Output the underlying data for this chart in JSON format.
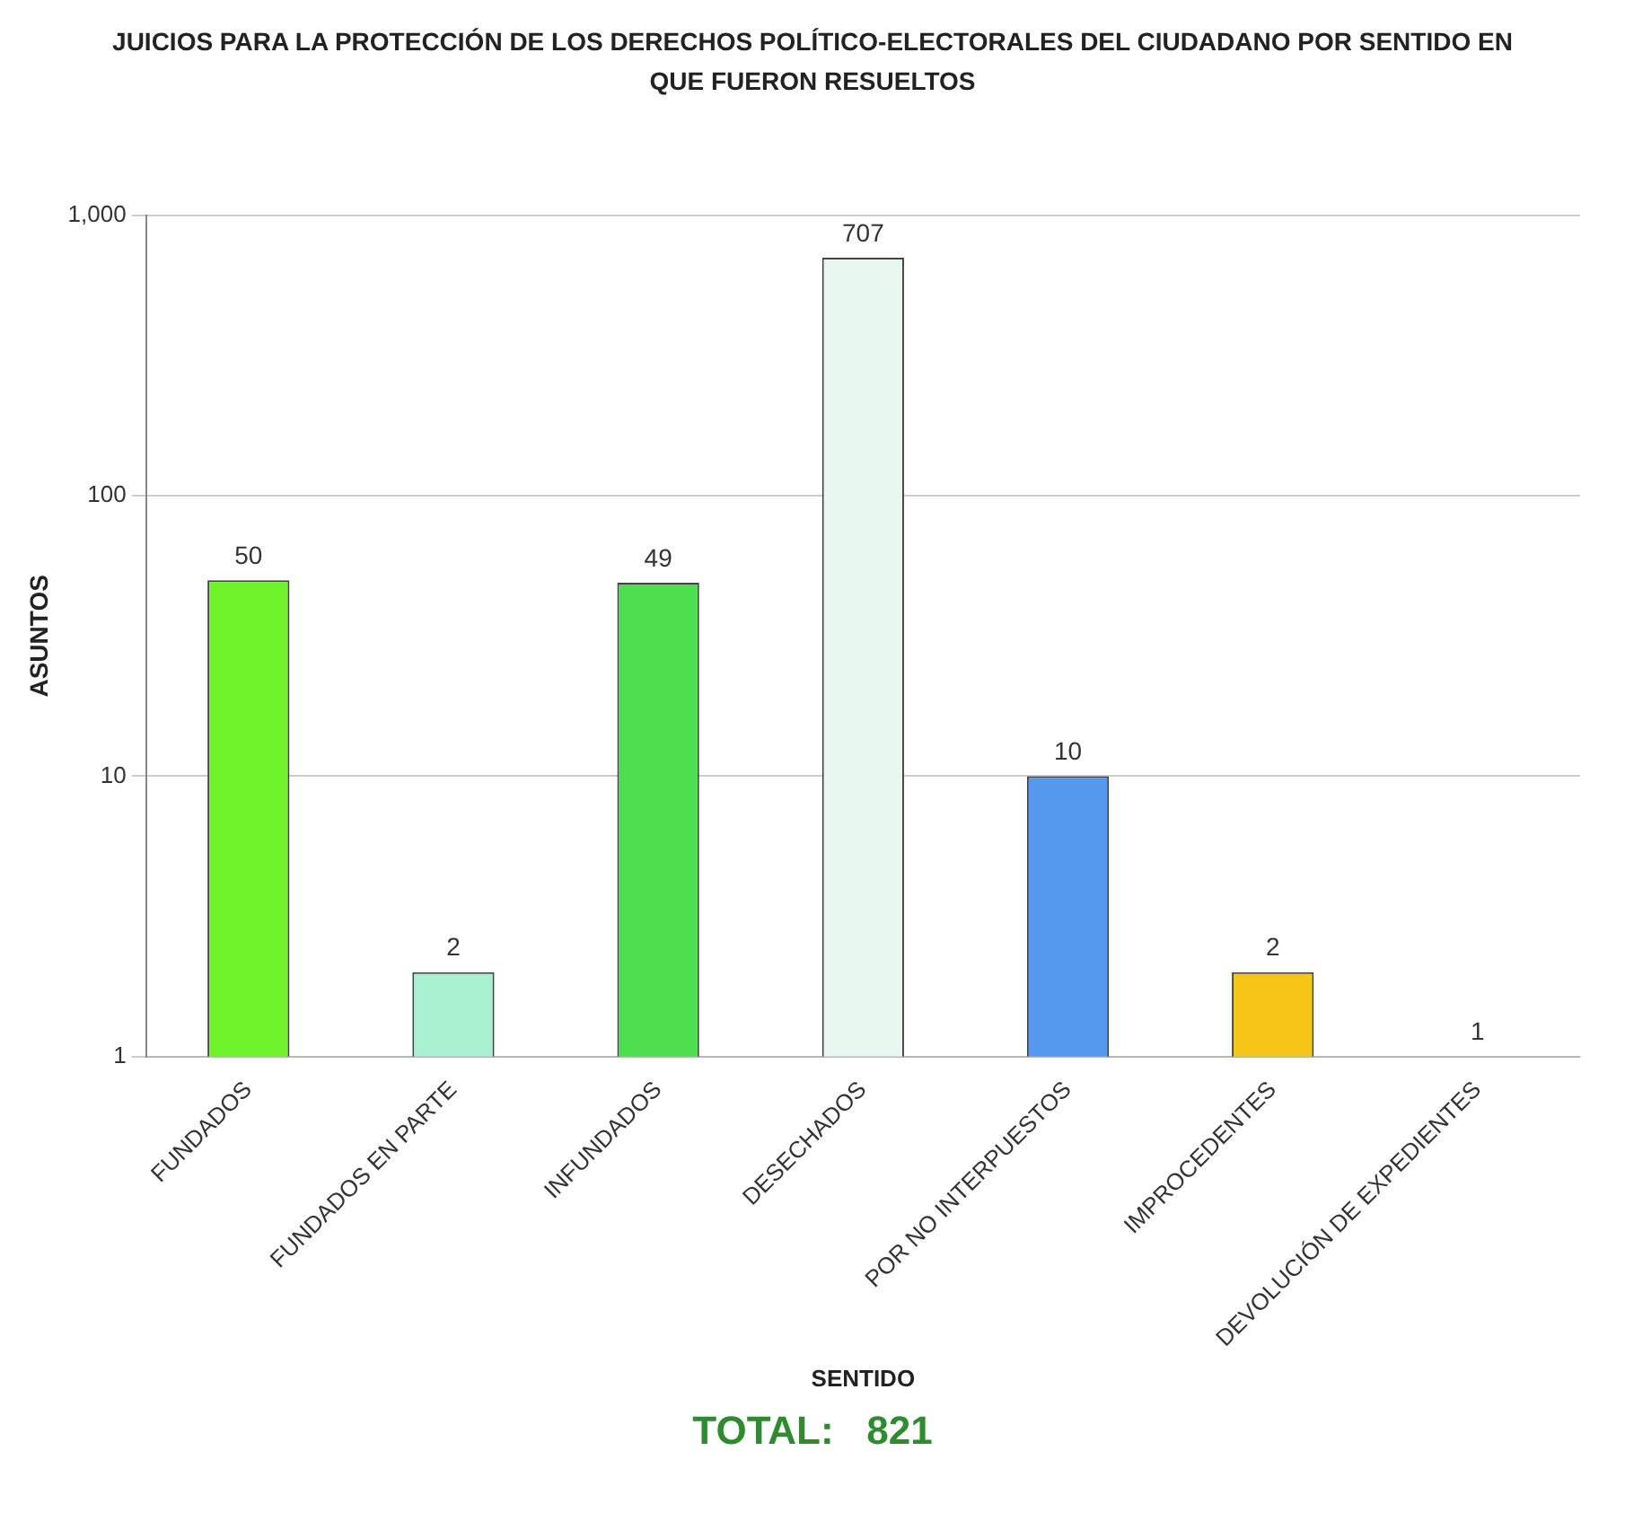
{
  "chart_data": {
    "type": "bar",
    "title": "JUICIOS PARA LA PROTECCIÓN DE LOS DERECHOS POLÍTICO-ELECTORALES DEL CIUDADANO POR SENTIDO EN QUE FUERON RESUELTOS",
    "xlabel": "SENTIDO",
    "ylabel": "ASUNTOS",
    "categories": [
      "FUNDADOS",
      "FUNDADOS EN PARTE",
      "INFUNDADOS",
      "DESECHADOS",
      "POR NO INTERPUESTOS",
      "IMPROCEDENTES",
      "DEVOLUCIÓN DE EXPEDIENTES"
    ],
    "values": [
      50,
      2,
      49,
      707,
      10,
      2,
      1
    ],
    "colors": [
      "#6ef22a",
      "#a8f0d0",
      "#4ddf4d",
      "#e8f8f0",
      "#5599ee",
      "#f5c518",
      "#33cc88"
    ],
    "ylim": [
      1,
      1000
    ],
    "yticks": [
      1,
      10,
      100,
      {
        "value": 1000,
        "label": "1,000"
      }
    ],
    "log": true,
    "grid": "y",
    "legend": false,
    "data_labels": true,
    "annotations": [
      "TOTAL:   821"
    ]
  }
}
